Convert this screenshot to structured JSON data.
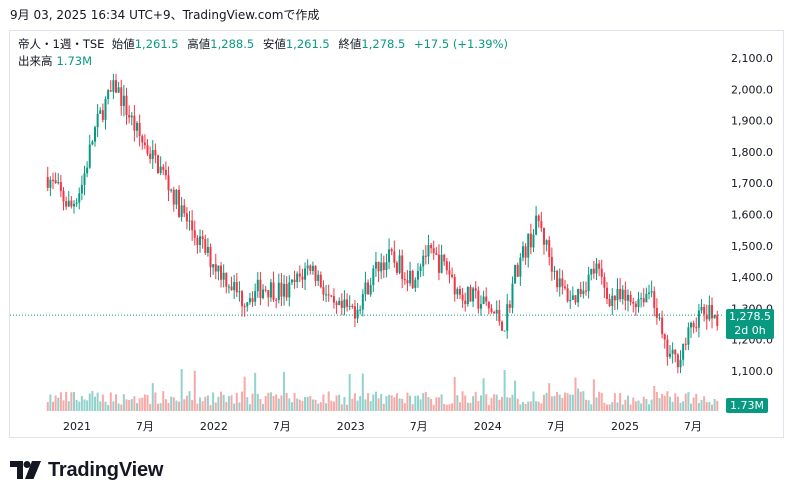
{
  "caption": "9月 03, 2025 16:34 UTC+9、TradingView.comで作成",
  "legend": {
    "symbol": "帝人・1週・TSE",
    "open_label": "始値",
    "open": "1,261.5",
    "high_label": "高値",
    "high": "1,288.5",
    "low_label": "安値",
    "low": "1,261.5",
    "close_label": "終値",
    "close": "1,278.5",
    "change": "+17.5 (+1.39%)",
    "volume_label": "出来高",
    "volume": "1.73M"
  },
  "price_tag": {
    "price": "1,278.5",
    "countdown": "2d 0h"
  },
  "volume_tag": "1.73M",
  "brand": {
    "name": "TradingView"
  },
  "colors": {
    "up": "#089981",
    "down": "#f23645",
    "up_volume": "#92d2cc",
    "down_volume": "#f7a9a7",
    "grid": "#e0e3eb"
  },
  "chart_data": {
    "type": "candlestick",
    "interval": "1週",
    "ylim": [
      1050,
      2150
    ],
    "y_ticks": [
      "2,100.0",
      "2,000.0",
      "1,900.0",
      "1,800.0",
      "1,700.0",
      "1,600.0",
      "1,500.0",
      "1,400.0",
      "1,300.0",
      "1,200.0",
      "1,100.0"
    ],
    "x_ticks": [
      "2021",
      "7月",
      "2022",
      "7月",
      "2023",
      "7月",
      "2024",
      "7月",
      "2025",
      "7月"
    ],
    "last_close": 1278.5,
    "trend": [
      [
        "2020-10",
        1720
      ],
      [
        "2020-12",
        1620
      ],
      [
        "2021-01",
        1700
      ],
      [
        "2021-02",
        1860
      ],
      [
        "2021-03",
        1950
      ],
      [
        "2021-04",
        2010
      ],
      [
        "2021-05",
        1930
      ],
      [
        "2021-06",
        1850
      ],
      [
        "2021-08",
        1740
      ],
      [
        "2021-10",
        1590
      ],
      [
        "2021-12",
        1470
      ],
      [
        "2022-02",
        1380
      ],
      [
        "2022-03",
        1330
      ],
      [
        "2022-05",
        1370
      ],
      [
        "2022-07",
        1350
      ],
      [
        "2022-09",
        1440
      ],
      [
        "2022-10",
        1380
      ],
      [
        "2022-11",
        1290
      ],
      [
        "2023-01",
        1300
      ],
      [
        "2023-03",
        1440
      ],
      [
        "2023-04",
        1460
      ],
      [
        "2023-06",
        1400
      ],
      [
        "2023-07",
        1480
      ],
      [
        "2023-09",
        1430
      ],
      [
        "2023-10",
        1350
      ],
      [
        "2023-12",
        1320
      ],
      [
        "2024-02",
        1250
      ],
      [
        "2024-03",
        1420
      ],
      [
        "2024-05",
        1580
      ],
      [
        "2024-06",
        1460
      ],
      [
        "2024-07",
        1360
      ],
      [
        "2024-08",
        1330
      ],
      [
        "2024-10",
        1430
      ],
      [
        "2024-11",
        1340
      ],
      [
        "2025-01",
        1320
      ],
      [
        "2025-03",
        1360
      ],
      [
        "2025-04",
        1170
      ],
      [
        "2025-05",
        1130
      ],
      [
        "2025-06",
        1200
      ],
      [
        "2025-07",
        1280
      ],
      [
        "2025-09",
        1278.5
      ]
    ]
  }
}
